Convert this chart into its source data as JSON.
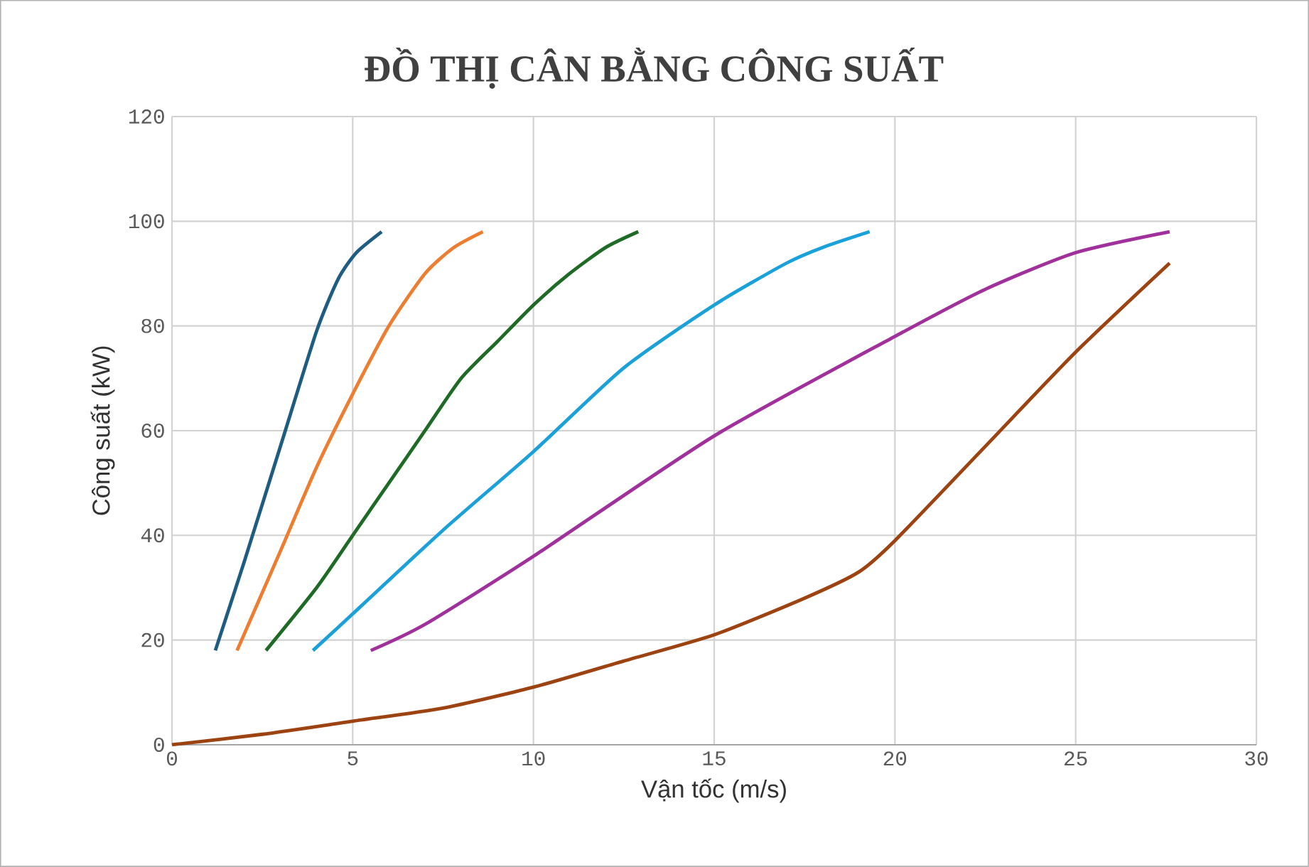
{
  "chart_data": {
    "type": "line",
    "title": "ĐỒ THỊ CÂN BẰNG CÔNG SUẤT",
    "xlabel": "Vận tốc (m/s)",
    "ylabel": "Công suất (kW)",
    "xlim": [
      0,
      30
    ],
    "ylim": [
      0,
      120
    ],
    "xticks": [
      0,
      5,
      10,
      15,
      20,
      25,
      30
    ],
    "yticks": [
      0,
      20,
      40,
      60,
      80,
      100,
      120
    ],
    "grid": true,
    "line_style": "solid",
    "series": [
      {
        "color": "#1f5c82",
        "x": [
          1.2,
          2,
          3,
          4,
          4.6,
          5.1,
          5.8
        ],
        "values": [
          18,
          35,
          57,
          79,
          89,
          94,
          98
        ]
      },
      {
        "color": "#ed7d31",
        "x": [
          1.8,
          3,
          4,
          5,
          6,
          7,
          7.8,
          8.6
        ],
        "values": [
          18,
          37,
          53,
          67,
          80,
          90,
          95,
          98
        ]
      },
      {
        "color": "#1e6b25",
        "x": [
          2.6,
          4,
          5,
          6,
          7,
          8,
          9,
          10,
          11,
          12,
          12.9
        ],
        "values": [
          18,
          30,
          40,
          50,
          60,
          70,
          77,
          84,
          90,
          95,
          98
        ]
      },
      {
        "color": "#1ba1d9",
        "x": [
          3.9,
          5,
          7.5,
          10,
          12.5,
          15,
          17,
          18,
          19.3
        ],
        "values": [
          18,
          25,
          41,
          56,
          72,
          84,
          92,
          95,
          98
        ]
      },
      {
        "color": "#a0309b",
        "x": [
          5.5,
          7,
          10,
          15,
          20,
          22.5,
          25,
          27.6
        ],
        "values": [
          18,
          23,
          36,
          59,
          78,
          87,
          94,
          98
        ]
      },
      {
        "color": "#9c4311",
        "x": [
          0,
          2.5,
          5,
          7.5,
          10,
          12.5,
          15,
          17.5,
          19,
          20,
          22.5,
          25,
          27.6
        ],
        "values": [
          0,
          2,
          4.5,
          7,
          11,
          16,
          21,
          28,
          33,
          39,
          57,
          75,
          92
        ]
      }
    ]
  }
}
